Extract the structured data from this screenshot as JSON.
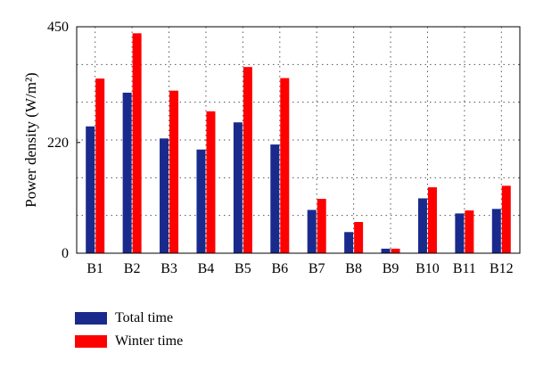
{
  "chart_data": {
    "type": "bar",
    "categories": [
      "B1",
      "B2",
      "B3",
      "B4",
      "B5",
      "B6",
      "B7",
      "B8",
      "B9",
      "B10",
      "B11",
      "B12"
    ],
    "series": [
      {
        "name": "Total time",
        "color": "#1a2a8c",
        "values": [
          252,
          319,
          228,
          206,
          260,
          216,
          86,
          42,
          9,
          109,
          79,
          88
        ]
      },
      {
        "name": "Winter time",
        "color": "#ff0000",
        "values": [
          347,
          437,
          323,
          282,
          370,
          348,
          108,
          62,
          9,
          131,
          85,
          134
        ]
      }
    ],
    "xlabel": "",
    "ylabel": "Power density (W/m²)",
    "ylim": [
      0,
      450
    ],
    "yticks": [
      0,
      220,
      450
    ],
    "grid": true,
    "legend_position": "bottom-left"
  }
}
